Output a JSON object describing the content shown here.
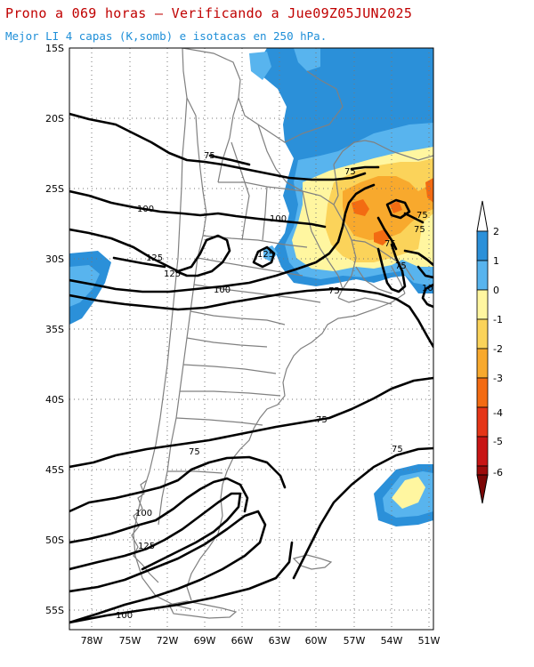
{
  "header": {
    "title": "Prono a 069 horas — Verificando a Jue09Z05JUN2025",
    "subtitle": "Mejor LI 4 capas (K,somb) e isotacas en 250 hPa."
  },
  "map": {
    "lat_labels": [
      "15S",
      "20S",
      "25S",
      "30S",
      "35S",
      "40S",
      "45S",
      "50S",
      "55S"
    ],
    "lon_labels": [
      "78W",
      "75W",
      "72W",
      "69W",
      "66W",
      "63W",
      "60W",
      "57W",
      "54W",
      "51W"
    ],
    "contour_labels": [
      {
        "text": "75",
        "key": "c75a"
      },
      {
        "text": "100",
        "key": "c100a"
      },
      {
        "text": "75",
        "key": "c75b"
      },
      {
        "text": "100",
        "key": "c100b"
      },
      {
        "text": "125",
        "key": "c125a"
      },
      {
        "text": "125",
        "key": "c125b"
      },
      {
        "text": "125",
        "key": "c125c"
      },
      {
        "text": "100",
        "key": "c100c"
      },
      {
        "text": "75",
        "key": "c75c"
      },
      {
        "text": "75",
        "key": "c75d"
      },
      {
        "text": "75",
        "key": "c75e"
      },
      {
        "text": "75",
        "key": "c75f"
      },
      {
        "text": "75",
        "key": "c75g"
      },
      {
        "text": "10",
        "key": "c10"
      },
      {
        "text": "75",
        "key": "c75h"
      },
      {
        "text": "75",
        "key": "c75i"
      },
      {
        "text": "75",
        "key": "c75j"
      },
      {
        "text": "100",
        "key": "c100d"
      },
      {
        "text": "125",
        "key": "c125d"
      },
      {
        "text": "100",
        "key": "c100e"
      }
    ]
  },
  "colorbar": {
    "labels": [
      "2",
      "1",
      "0",
      "-1",
      "-2",
      "-3",
      "-4",
      "-5",
      "-6"
    ],
    "colors": [
      "#2b90d9",
      "#58b4ee",
      "#fff6a0",
      "#fbd35a",
      "#f8a92d",
      "#f36b12",
      "#e53517",
      "#c81414",
      "#9c0a0a",
      "#7c0606"
    ]
  }
}
